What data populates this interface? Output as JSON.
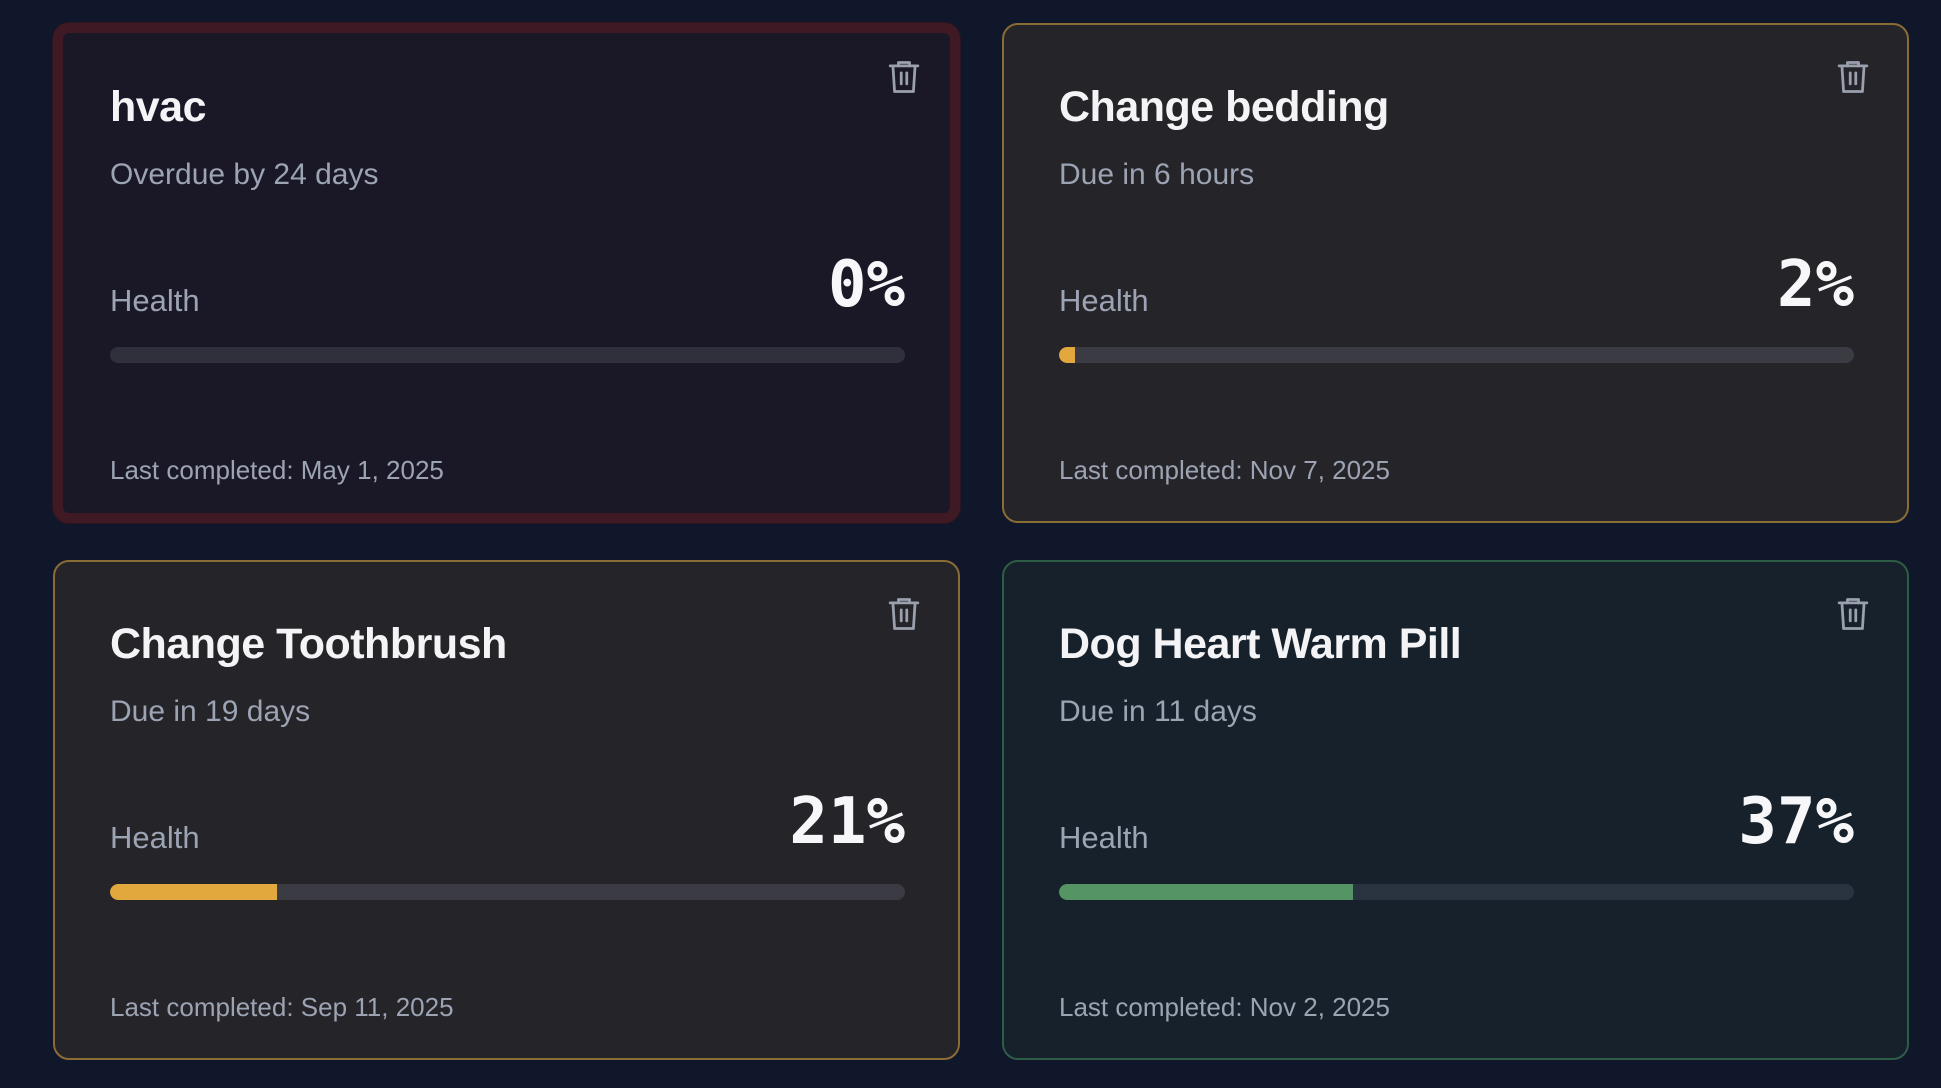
{
  "health_label": "Health",
  "tasks": [
    {
      "title": "hvac",
      "due": "Overdue by 24 days",
      "health_percent": 0,
      "health_text": "0%",
      "last_completed": "Last completed: May 1, 2025",
      "status": "overdue",
      "bar_color": "#e3a83d"
    },
    {
      "title": "Change bedding",
      "due": "Due in 6 hours",
      "health_percent": 2,
      "health_text": "2%",
      "last_completed": "Last completed: Nov 7, 2025",
      "status": "warning",
      "bar_color": "#e3a83d"
    },
    {
      "title": "Change Toothbrush",
      "due": "Due in 19 days",
      "health_percent": 21,
      "health_text": "21%",
      "last_completed": "Last completed: Sep 11, 2025",
      "status": "warning",
      "bar_color": "#e3a83d"
    },
    {
      "title": "Dog Heart Warm Pill",
      "due": "Due in 11 days",
      "health_percent": 37,
      "health_text": "37%",
      "last_completed": "Last completed: Nov 2, 2025",
      "status": "good",
      "bar_color": "#549563"
    }
  ]
}
